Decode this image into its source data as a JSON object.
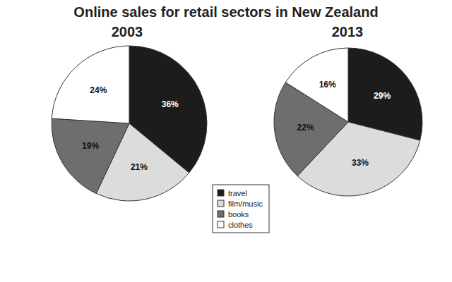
{
  "title": "Online sales for retail sectors in New Zealand",
  "chart_data": [
    {
      "type": "pie",
      "title": "2003",
      "categories": [
        "travel",
        "film/music",
        "books",
        "clothes"
      ],
      "values": [
        36,
        21,
        19,
        24
      ],
      "value_labels": [
        "36%",
        "21%",
        "19%",
        "24%"
      ],
      "colors": [
        "#1c1c1c",
        "#dcdcdc",
        "#6e6e6e",
        "#ffffff"
      ],
      "data_labels": true,
      "legend": "bottom"
    },
    {
      "type": "pie",
      "title": "2013",
      "categories": [
        "travel",
        "film/music",
        "books",
        "clothes"
      ],
      "values": [
        29,
        33,
        22,
        16
      ],
      "value_labels": [
        "29%",
        "33%",
        "22%",
        "16%"
      ],
      "colors": [
        "#1c1c1c",
        "#dcdcdc",
        "#6e6e6e",
        "#ffffff"
      ],
      "data_labels": true
    }
  ]
}
